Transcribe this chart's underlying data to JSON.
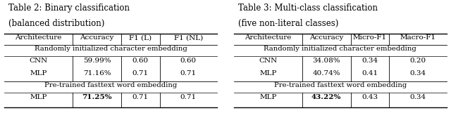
{
  "table2": {
    "title_line1": "Table 2: Binary classification",
    "title_line2": "(balanced distribution)",
    "headers": [
      "Architecture",
      "Accuracy",
      "F1 (L)",
      "F1 (NL)"
    ],
    "section1_label": "Randomly initialized character embedding",
    "section1_rows": [
      [
        "CNN",
        "59.99%",
        "0.60",
        "0.60"
      ],
      [
        "MLP",
        "71.16%",
        "0.71",
        "0.71"
      ]
    ],
    "section2_label": "Pre-trained fasttext word embedding",
    "section2_rows": [
      [
        "MLP",
        "71.25%",
        "0.71",
        "0.71"
      ]
    ],
    "bold_cells": [
      [
        0,
        1
      ]
    ]
  },
  "table3": {
    "title_line1": "Table 3: Multi-class classification",
    "title_line2": "(five non-literal classes)",
    "headers": [
      "Architecture",
      "Accuracy",
      "Micro-F1",
      "Macro-F1"
    ],
    "section1_label": "Randomly initialized character embedding",
    "section1_rows": [
      [
        "CNN",
        "34.08%",
        "0.34",
        "0.20"
      ],
      [
        "MLP",
        "40.74%",
        "0.41",
        "0.34"
      ]
    ],
    "section2_label": "Pre-trained fasttext word embedding",
    "section2_rows": [
      [
        "MLP",
        "43.22%",
        "0.43",
        "0.34"
      ]
    ],
    "bold_cells": [
      [
        0,
        1
      ]
    ]
  },
  "font_size": 7.5,
  "title_font_size": 8.5,
  "section_font_size": 7.2,
  "bg_color": "#ffffff",
  "line_color": "#000000"
}
